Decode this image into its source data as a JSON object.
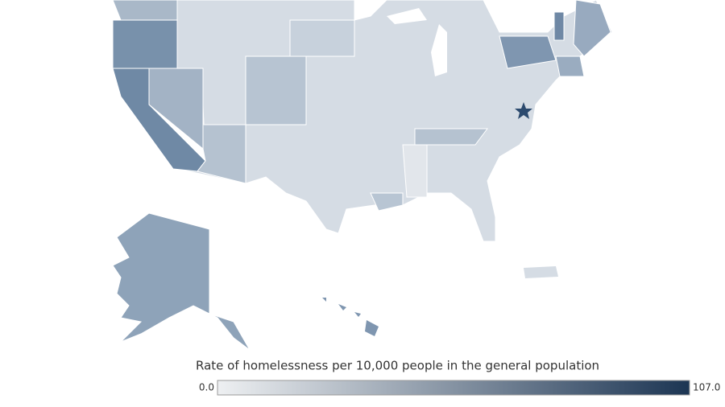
{
  "legend": {
    "title": "Rate of homelessness per 10,000 people in the general population",
    "min": {
      "value": 0,
      "label": "0.0"
    },
    "max": {
      "value": 107,
      "label": "107.0"
    },
    "colors": [
      "#eef0f2",
      "#1c3553"
    ]
  }
}
